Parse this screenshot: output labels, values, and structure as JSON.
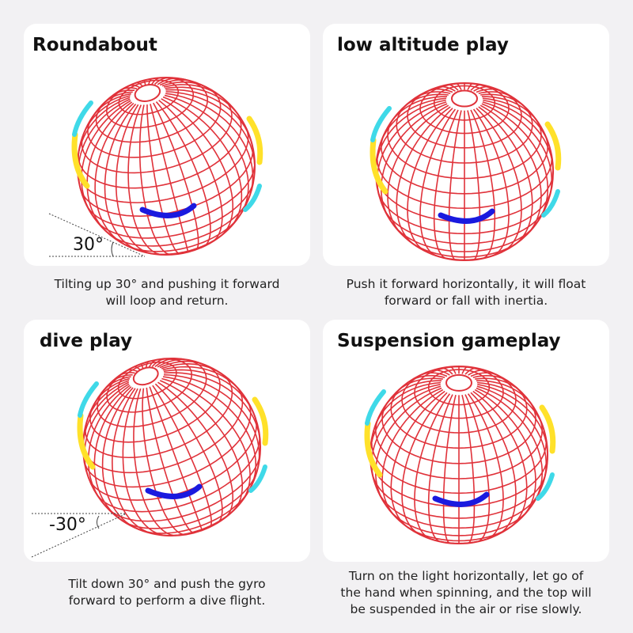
{
  "panels": [
    {
      "title": "Roundabout",
      "caption_line1": "Tilting up 30° and pushing it forward",
      "caption_line2": "will loop and return.",
      "angle_label": "30°"
    },
    {
      "title": "low altitude play",
      "caption_line1": "Push it forward horizontally, it will float",
      "caption_line2": "forward or fall with inertia."
    },
    {
      "title": "dive play",
      "caption_line1": "Tilt down 30° and push the gyro",
      "caption_line2": "forward to perform a dive flight.",
      "angle_label": "-30°"
    },
    {
      "title": "Suspension gameplay",
      "caption_line1": "Turn on the light horizontally, let go of",
      "caption_line2": "the hand when spinning, and the top will",
      "caption_line3": "be suspended in the air or rise slowly."
    }
  ],
  "colors": {
    "background": "#f2f1f3",
    "grid_red": "#e0323a",
    "arrow_blue": "#1a1adf",
    "arrow_cyan": "#3fd9e8",
    "arrow_yellow": "#ffe12a"
  }
}
